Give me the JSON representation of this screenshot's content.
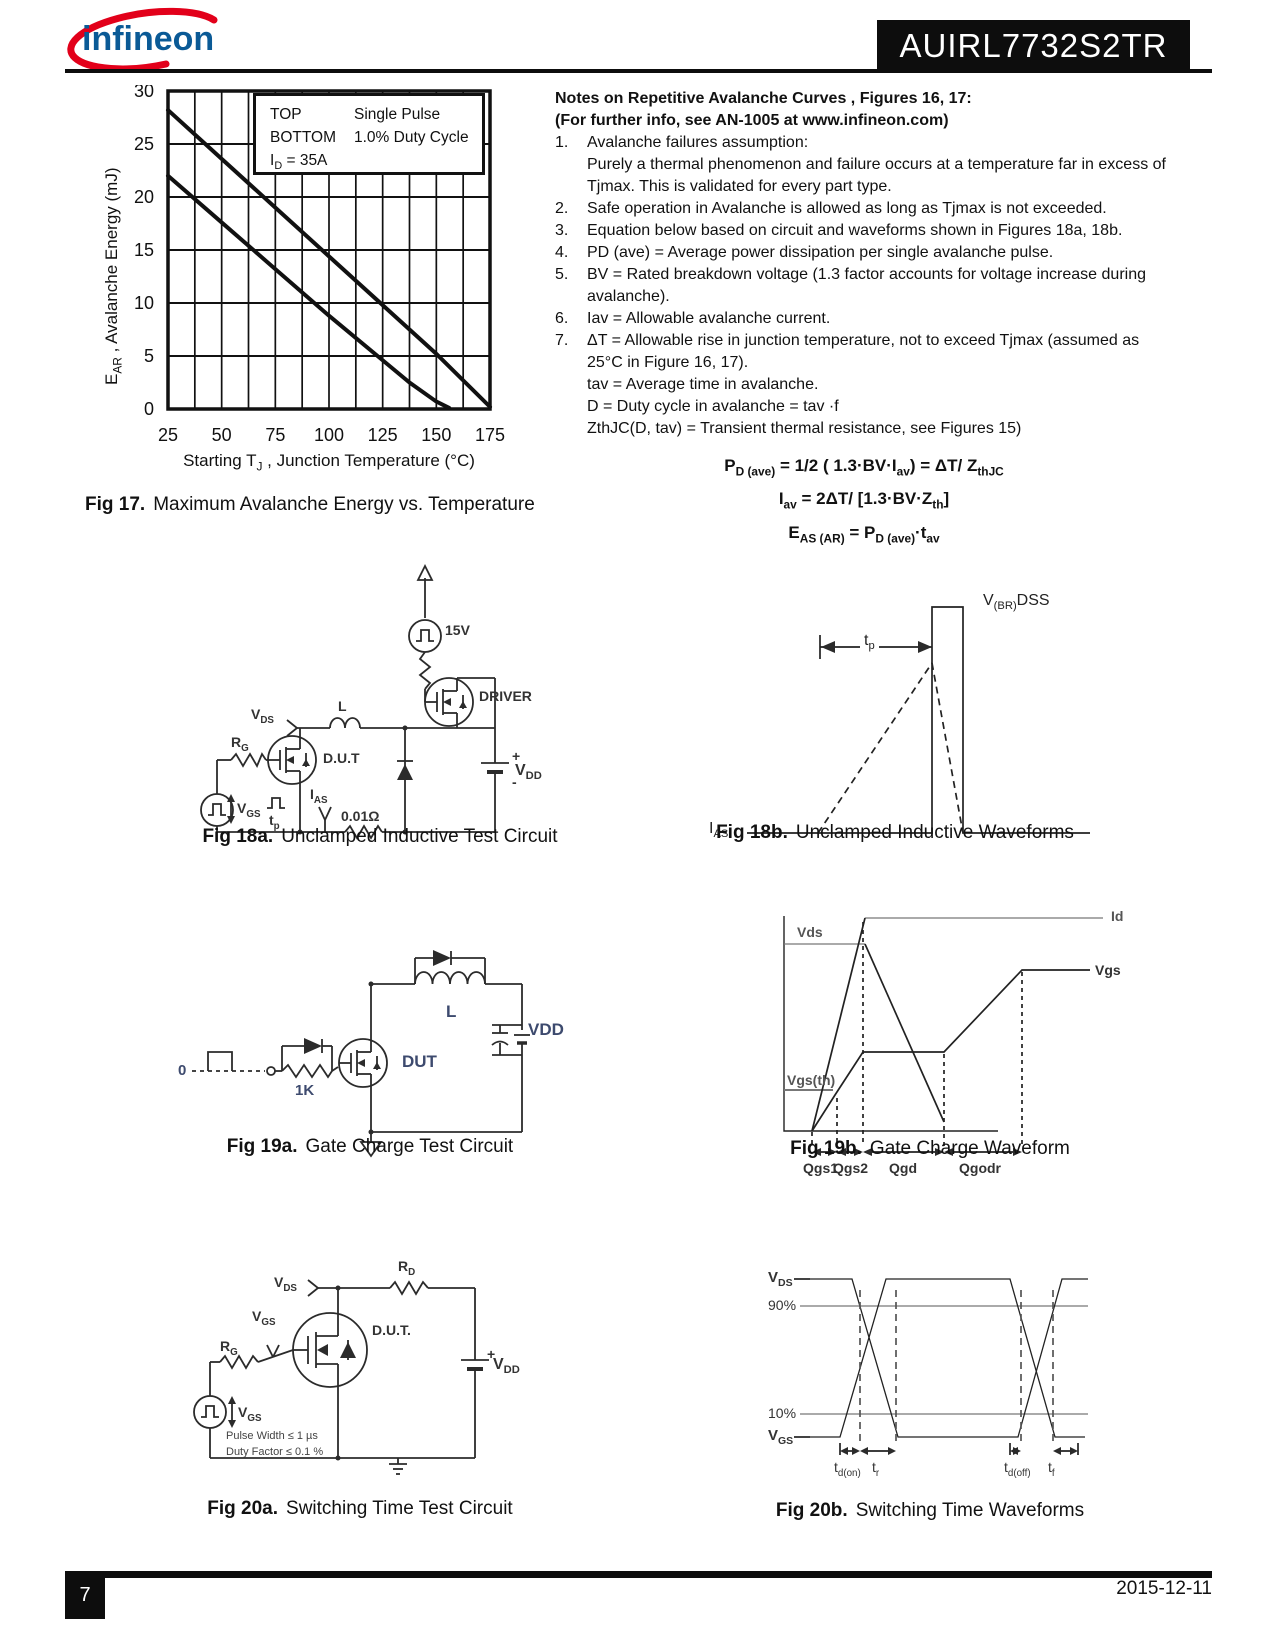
{
  "header": {
    "brand": "infineon",
    "part_number": "AUIRL7732S2TR"
  },
  "chart_data": {
    "type": "line",
    "title": "",
    "xlabel": "Starting TJ , Junction Temperature (°C)",
    "ylabel": "EAR , Avalanche Energy (mJ)",
    "xlabel_rich": [
      {
        "t": "Starting T"
      },
      {
        "t": "J",
        "sub": true
      },
      {
        "t": " , Junction Temperature (°C)"
      }
    ],
    "ylabel_rich": [
      {
        "t": "E"
      },
      {
        "t": "AR",
        "sub": true
      },
      {
        "t": " , Avalanche Energy (mJ)"
      }
    ],
    "xlim": [
      25,
      175
    ],
    "ylim": [
      0,
      30
    ],
    "xticks": [
      25,
      50,
      75,
      100,
      125,
      150,
      175
    ],
    "yticks": [
      0,
      5,
      10,
      15,
      20,
      25,
      30
    ],
    "x_minor_step": 12.5,
    "grid": true,
    "legend": {
      "position": "top-right",
      "rows": [
        [
          "TOP",
          "Single Pulse"
        ],
        [
          "BOTTOM",
          "1.0% Duty Cycle"
        ]
      ],
      "id_line": [
        {
          "t": "I"
        },
        {
          "t": "D",
          "sub": true
        },
        {
          "t": " = 35A"
        }
      ]
    },
    "series": [
      {
        "name": "Single Pulse",
        "x": [
          25,
          50,
          75,
          100,
          125,
          150,
          162.5,
          175
        ],
        "values": [
          28.2,
          23.6,
          19.0,
          14.4,
          9.8,
          5.2,
          2.7,
          0.2
        ]
      },
      {
        "name": "1.0% Duty Cycle",
        "x": [
          25,
          50,
          75,
          100,
          125,
          137.5,
          150,
          156
        ],
        "values": [
          22.0,
          17.6,
          13.2,
          8.8,
          4.6,
          2.5,
          0.7,
          0.1
        ]
      }
    ]
  },
  "figures": {
    "fig17": {
      "caption_label": "Fig 17.",
      "caption_text": "Maximum Avalanche Energy vs. Temperature"
    },
    "fig18a": {
      "caption_label": "Fig 18a.",
      "caption_text": "Unclamped Inductive Test Circuit",
      "labels": {
        "v15": "15V",
        "driver": "DRIVER",
        "l": "L",
        "vds": [
          {
            "t": "V"
          },
          {
            "t": "DS",
            "sub": true
          }
        ],
        "rg": [
          {
            "t": "R"
          },
          {
            "t": "G",
            "sub": true
          }
        ],
        "dut": "D.U.T",
        "ias": [
          {
            "t": "I"
          },
          {
            "t": "AS",
            "sub": true
          }
        ],
        "vgs": [
          {
            "t": "V"
          },
          {
            "t": "GS",
            "sub": true
          }
        ],
        "tp": [
          {
            "t": "t"
          },
          {
            "t": "p",
            "sub": true
          }
        ],
        "shunt": "0.01Ω",
        "vdd": [
          {
            "t": "V"
          },
          {
            "t": "DD",
            "sub": true
          }
        ],
        "plus": "+",
        "minus": "-"
      }
    },
    "fig18b": {
      "caption_label": "Fig 18b.",
      "caption_text": "Unclamped Inductive Waveforms",
      "labels": {
        "tp": [
          {
            "t": "t"
          },
          {
            "t": "p",
            "sub": true
          }
        ],
        "vbrdss": [
          {
            "t": "V"
          },
          {
            "t": "(BR)",
            "sub": true
          },
          {
            "t": "DSS"
          }
        ],
        "ias": [
          {
            "t": "I"
          },
          {
            "t": "AS",
            "sub": true
          }
        ]
      }
    },
    "fig19a": {
      "caption_label": "Fig 19a.",
      "caption_text": "Gate Charge Test Circuit",
      "labels": {
        "zero": "0",
        "onek": "1K",
        "dut": "DUT",
        "l": "L",
        "vdd": "VDD"
      }
    },
    "fig19b": {
      "caption_label": "Fig 19b.",
      "caption_text": "Gate Charge Waveform",
      "labels": {
        "id": "Id",
        "vds": "Vds",
        "vgsth": "Vgs(th)",
        "vgs": "Vgs",
        "qgs1": "Qgs1",
        "qgs2": "Qgs2",
        "qgd": "Qgd",
        "qgodr": "Qgodr"
      }
    },
    "fig20a": {
      "caption_label": "Fig 20a.",
      "caption_text": "Switching Time Test Circuit",
      "labels": {
        "vds": [
          {
            "t": "V"
          },
          {
            "t": "DS",
            "sub": true
          }
        ],
        "rd": [
          {
            "t": "R"
          },
          {
            "t": "D",
            "sub": true
          }
        ],
        "vgs_probe": [
          {
            "t": "V"
          },
          {
            "t": "GS",
            "sub": true
          }
        ],
        "dut": "D.U.T.",
        "rg": [
          {
            "t": "R"
          },
          {
            "t": "G",
            "sub": true
          }
        ],
        "vgs_src": [
          {
            "t": "V"
          },
          {
            "t": "GS",
            "sub": true
          }
        ],
        "pulse_width": "Pulse Width ≤ 1 µs",
        "duty_factor": "Duty Factor ≤ 0.1 %",
        "vdd": [
          {
            "t": "V"
          },
          {
            "t": "DD",
            "sub": true
          }
        ],
        "plus": "+"
      }
    },
    "fig20b": {
      "caption_label": "Fig 20b.",
      "caption_text": "Switching Time Waveforms",
      "labels": {
        "vds": [
          {
            "t": "V"
          },
          {
            "t": "DS",
            "sub": true
          }
        ],
        "p90": "90%",
        "p10": "10%",
        "vgs": [
          {
            "t": "V"
          },
          {
            "t": "GS",
            "sub": true
          }
        ],
        "tdon": [
          {
            "t": "t"
          },
          {
            "t": "d(on)",
            "sub": true
          }
        ],
        "tr": [
          {
            "t": "t"
          },
          {
            "t": "r",
            "sub": true
          }
        ],
        "tdoff": [
          {
            "t": "t"
          },
          {
            "t": "d(off)",
            "sub": true
          }
        ],
        "tf": [
          {
            "t": "t"
          },
          {
            "t": "f",
            "sub": true
          }
        ]
      }
    }
  },
  "notes": {
    "title1": "Notes on Repetitive Avalanche Curves , Figures 16, 17:",
    "title2": "(For further info, see AN-1005 at www.infineon.com)",
    "items": [
      {
        "num": "1.",
        "text": "Avalanche failures assumption:\nPurely a thermal phenomenon and failure occurs at a temperature far in excess of Tjmax. This is validated for every part type."
      },
      {
        "num": "2.",
        "text": "Safe operation in Avalanche is allowed as long as Tjmax is not exceeded."
      },
      {
        "num": "3.",
        "text": "Equation below based on circuit and waveforms shown in Figures 18a, 18b."
      },
      {
        "num": "4.",
        "text": "PD (ave) = Average power dissipation per single avalanche pulse."
      },
      {
        "num": "5.",
        "text": "BV = Rated breakdown voltage (1.3 factor accounts for voltage increase during avalanche)."
      },
      {
        "num": "6.",
        "text": "Iav = Allowable avalanche current."
      },
      {
        "num": "7.",
        "text": "ΔT = Allowable rise in junction temperature, not to exceed Tjmax (assumed as 25°C in Figure 16, 17)."
      },
      {
        "num": "",
        "text": "tav = Average time in avalanche."
      },
      {
        "num": "",
        "text": "D = Duty cycle in avalanche = tav ·f"
      },
      {
        "num": "",
        "text": "ZthJC(D, tav) = Transient thermal resistance, see Figures 15)"
      }
    ]
  },
  "equations": [
    [
      {
        "t": "P"
      },
      {
        "t": "D (ave)",
        "sub": true
      },
      {
        "t": " = 1/2 ( 1.3·BV·I"
      },
      {
        "t": "av",
        "sub": true
      },
      {
        "t": ") = ΔT/ Z"
      },
      {
        "t": "thJC",
        "sub": true
      }
    ],
    [
      {
        "t": "I"
      },
      {
        "t": "av",
        "sub": true
      },
      {
        "t": " = 2ΔT/ [1.3·BV·Z"
      },
      {
        "t": "th",
        "sub": true
      },
      {
        "t": "]"
      }
    ],
    [
      {
        "t": "E"
      },
      {
        "t": "AS (AR)",
        "sub": true
      },
      {
        "t": " = P"
      },
      {
        "t": "D (ave)",
        "sub": true
      },
      {
        "t": "·t"
      },
      {
        "t": "av",
        "sub": true
      }
    ]
  ],
  "footer": {
    "page": "7",
    "date": "2015-12-11"
  }
}
